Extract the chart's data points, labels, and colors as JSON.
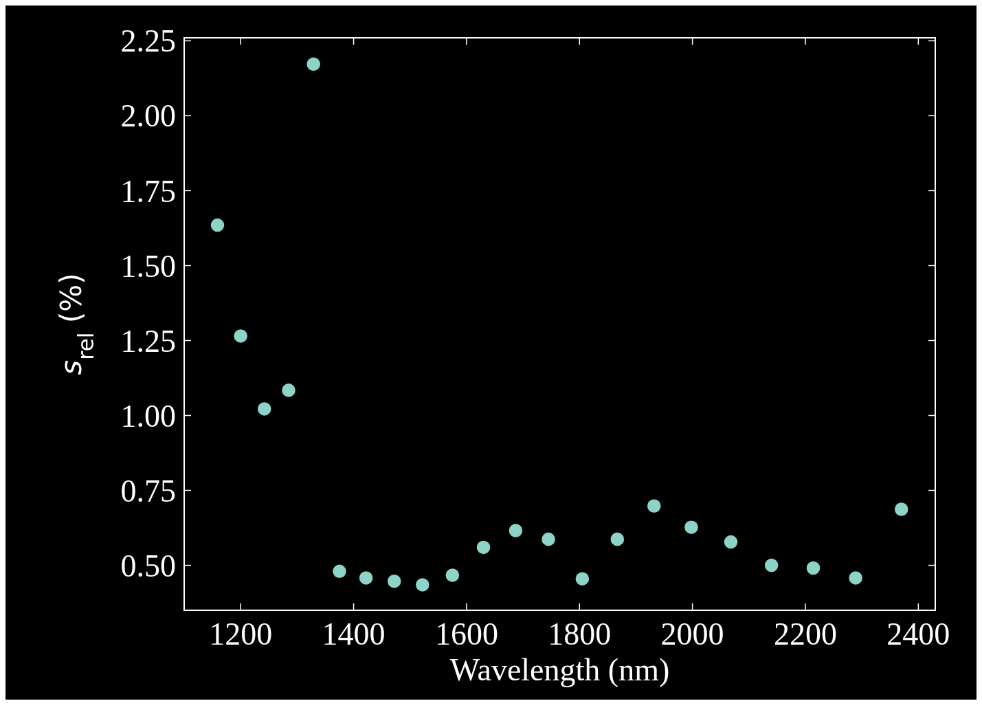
{
  "chart_data": {
    "type": "scatter",
    "xlabel": "Wavelength (nm)",
    "ylabel": "s$_{rel}$ (%)",
    "x": [
      1159,
      1200,
      1242,
      1285,
      1329,
      1375,
      1422,
      1472,
      1522,
      1575,
      1630,
      1687,
      1745,
      1805,
      1867,
      1932,
      1998,
      2068,
      2140,
      2214,
      2289,
      2370
    ],
    "series": [
      {
        "color": "#8dd3c7",
        "values": [
          1.635,
          1.265,
          1.022,
          1.084,
          2.172,
          0.48,
          0.458,
          0.447,
          0.435,
          0.467,
          0.56,
          0.616,
          0.587,
          0.455,
          0.587,
          0.698,
          0.627,
          0.578,
          0.5,
          0.491,
          0.458,
          0.687
        ]
      }
    ],
    "xlim": [
      1100,
      2430
    ],
    "ylim": [
      0.35,
      2.26
    ],
    "xticks": [
      1200,
      1400,
      1600,
      1800,
      2000,
      2200,
      2400
    ],
    "yticks": [
      {
        "value": 0.5,
        "label": "0.50"
      },
      {
        "value": 0.75,
        "label": "0.75"
      },
      {
        "value": 1,
        "label": "1.00"
      },
      {
        "value": 1.25,
        "label": "1.25"
      },
      {
        "value": 1.5,
        "label": "1.50"
      },
      {
        "value": 1.75,
        "label": "1.75"
      },
      {
        "value": 2,
        "label": "2.00"
      },
      {
        "value": 2.25,
        "label": "2.25"
      }
    ],
    "marker": "circle",
    "grid": false
  }
}
